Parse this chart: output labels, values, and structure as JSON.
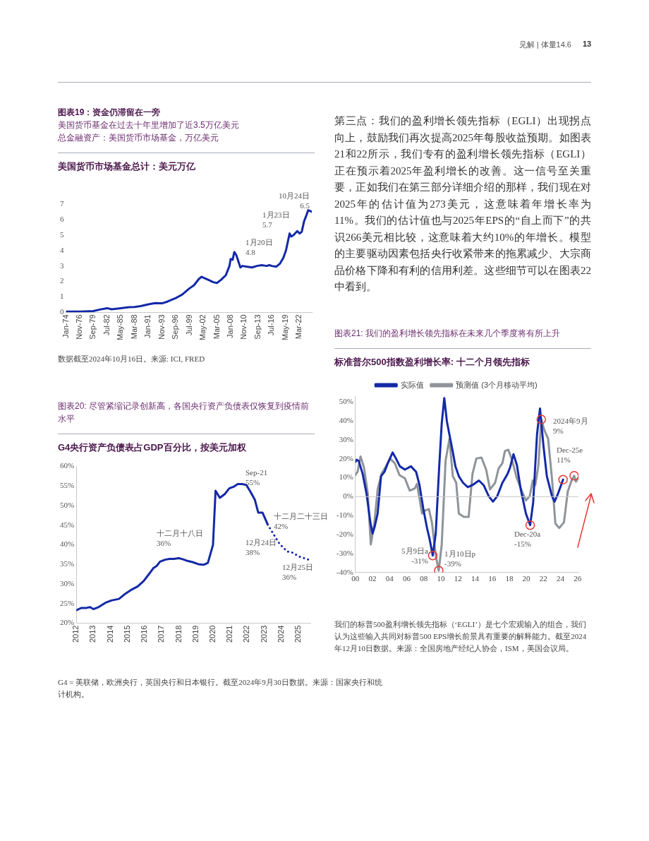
{
  "chart_data": [
    {
      "type": "line",
      "title": "图表19：资金仍滞留在一旁",
      "subtitle": "美国货币基金在过去十年里增加了近3.5万亿美元",
      "ylabel": "总金融资产：美国货币市场基金，万亿美元",
      "color": "#1329a8",
      "x": [
        "1974-01",
        "1977-01",
        "1979-09",
        "1981-01",
        "1982-07",
        "1983-06",
        "1985-05",
        "1987-01",
        "1988-03",
        "1989-06",
        "1991-01",
        "1992-06",
        "1993-11",
        "1995-01",
        "1996-09",
        "1998-01",
        "1999-07",
        "2000-06",
        "2001-06",
        "2002-01",
        "2002-05",
        "2003-06",
        "2004-06",
        "2005-03",
        "2006-01",
        "2007-01",
        "2007-10",
        "2008-01",
        "2008-06",
        "2008-10",
        "2009-03",
        "2009-08",
        "2010-01",
        "2010-06",
        "2011-06",
        "2012-06",
        "2013-06",
        "2014-06",
        "2015-06",
        "2016-01",
        "2016-07",
        "2017-06",
        "2018-03",
        "2018-11",
        "2019-06",
        "2020-03",
        "2020-07",
        "2021-01",
        "2021-10",
        "2022-04",
        "2022-09",
        "2023-03",
        "2023-09",
        "2024-01",
        "2024-06",
        "2024-10"
      ],
      "values": [
        0.05,
        0.05,
        0.08,
        0.18,
        0.27,
        0.2,
        0.27,
        0.33,
        0.35,
        0.4,
        0.52,
        0.6,
        0.58,
        0.7,
        0.92,
        1.15,
        1.55,
        1.75,
        2.15,
        2.3,
        2.25,
        2.1,
        1.95,
        1.9,
        2.1,
        2.4,
        3.0,
        3.45,
        3.4,
        3.9,
        3.7,
        3.3,
        2.9,
        3.0,
        2.95,
        2.9,
        3.0,
        3.05,
        3.0,
        3.05,
        3.0,
        2.95,
        3.15,
        3.5,
        4.0,
        5.1,
        4.9,
        5.0,
        5.25,
        5.1,
        5.2,
        5.9,
        6.3,
        6.6,
        6.55,
        6.5
      ],
      "xlim": [
        "1974-01",
        "2024-10"
      ],
      "xticks": [
        {
          "value": "1974-01",
          "label": "Jan-74"
        },
        {
          "value": "1976-11",
          "label": "Nov-76"
        },
        {
          "value": "1979-09",
          "label": "Sep-79"
        },
        {
          "value": "1982-07",
          "label": "Jul-82"
        },
        {
          "value": "1985-05",
          "label": "May-85"
        },
        {
          "value": "1988-03",
          "label": "Mar-88"
        },
        {
          "value": "1991-01",
          "label": "Jan-91"
        },
        {
          "value": "1993-11",
          "label": "Nov-93"
        },
        {
          "value": "1996-09",
          "label": "Sep-96"
        },
        {
          "value": "1999-07",
          "label": "Jul-99"
        },
        {
          "value": "2002-05",
          "label": "May-02"
        },
        {
          "value": "2005-03",
          "label": "Mar-05"
        },
        {
          "value": "2008-01",
          "label": "Jan-08"
        },
        {
          "value": "2010-11",
          "label": "Nov-10"
        },
        {
          "value": "2013-09",
          "label": "Sep-13"
        },
        {
          "value": "2016-07",
          "label": "Jul-16"
        },
        {
          "value": "2019-05",
          "label": "May-19"
        },
        {
          "value": "2022-03",
          "label": "Mar-22"
        }
      ],
      "ylim": [
        0,
        7
      ],
      "yticks": [
        0,
        1,
        2,
        3,
        4,
        5,
        6,
        7
      ],
      "grid": false,
      "legend": false,
      "annotations": [
        "美国货币市场基金总计：美元万亿",
        "1月20日 4.8",
        "1月23日 5.7",
        "10月24日 6.5",
        "数据截至2024年10月16日。来源: ICI, FRED"
      ]
    },
    {
      "type": "line",
      "title": "图表20: 尽管紧缩记录创新高，各国央行资产负债表仅恢复到疫情前水平",
      "series": [
        {
          "color": "#1329a8",
          "line_style": "solid",
          "x": [
            2012,
            2012.3,
            2012.6,
            2012.8,
            2013,
            2013.3,
            2013.7,
            2014.05,
            2014.5,
            2014.8,
            2015.25,
            2015.6,
            2015.95,
            2016.3,
            2016.5,
            2016.7,
            2016.9,
            2017.2,
            2017.45,
            2017.7,
            2018,
            2018.25,
            2018.5,
            2018.8,
            2019.2,
            2019.45,
            2019.7,
            2020,
            2020.15,
            2020.4,
            2020.7,
            2020.95,
            2021.2,
            2021.45,
            2021.7,
            2021.95,
            2022.2,
            2022.45,
            2022.65,
            2022.9,
            2023.2
          ],
          "values": [
            23.3,
            23.9,
            23.9,
            24.1,
            23.6,
            24.1,
            25.2,
            25.8,
            26.2,
            27.3,
            28.6,
            29.4,
            30.8,
            32.8,
            34,
            34.6,
            35.7,
            36.2,
            36.4,
            36.4,
            36.6,
            36.3,
            35.9,
            35.6,
            35,
            34.9,
            35.4,
            40,
            53.8,
            52,
            53,
            54.4,
            54.8,
            55.5,
            55.5,
            55.3,
            53.5,
            51.5,
            48.2,
            48.2,
            45.2
          ]
        },
        {
          "color": "#1329a8",
          "line_style": "dotted",
          "x": [
            2023.2,
            2023.5,
            2023.9,
            2024.35,
            2024.65,
            2025.05,
            2025.6
          ],
          "values": [
            45.2,
            43,
            40.2,
            38.3,
            38,
            37,
            36.2
          ]
        }
      ],
      "xlim": [
        2012,
        2025.7
      ],
      "xticks": [
        2012,
        2013,
        2014,
        2015,
        2016,
        2017,
        2018,
        2019,
        2020,
        2021,
        2022,
        2023,
        2024,
        2025
      ],
      "ylim": [
        20,
        60
      ],
      "yticks": [
        {
          "value": 20,
          "label": "20%"
        },
        {
          "value": 25,
          "label": "25%"
        },
        {
          "value": 30,
          "label": "30%"
        },
        {
          "value": 35,
          "label": "35%"
        },
        {
          "value": 40,
          "label": "40%"
        },
        {
          "value": 45,
          "label": "45%"
        },
        {
          "value": 50,
          "label": "50%"
        },
        {
          "value": 55,
          "label": "55%"
        },
        {
          "value": 60,
          "label": "60%"
        }
      ],
      "grid": false,
      "legend": false,
      "annotations": [
        "G4央行资产负债表占GDP百分比，按美元加权",
        "Sep-21 55%",
        "十二月十八日 36%",
        "十二月二十三日 42%",
        "12月24日 38%",
        "12月25日 36%",
        "G4 = 美联储，欧洲央行，英国央行和日本银行。截至2024年9月30日数据。来源：国家央行和统计机构。"
      ]
    },
    {
      "type": "line",
      "title": "图表21: 我们的盈利增长领先指标在未来几个季度将有所上升",
      "series": [
        {
          "name": "实际值",
          "color": "#1329a8",
          "x": [
            0,
            0.15,
            0.4,
            0.85,
            1.3,
            1.75,
            2,
            2.25,
            2.6,
            3,
            3.4,
            3.8,
            4.35,
            4.75,
            5.2,
            5.8,
            6.5,
            7.1,
            7.5,
            7.95,
            8.4,
            8.65,
            9.05,
            9.4,
            9.8,
            10.1,
            10.4,
            10.7,
            11,
            11.4,
            11.7,
            12.1,
            12.6,
            13.15,
            13.7,
            14.45,
            15,
            15.6,
            16.1,
            16.6,
            17.2,
            17.8,
            18.1,
            18.5,
            18.9,
            19.35,
            19.95,
            20.45,
            20.8,
            21.25,
            21.6,
            22,
            22.4,
            23,
            23.3,
            23.7,
            24.3
          ],
          "values": [
            18.3,
            19.5,
            18.7,
            12,
            1.5,
            -13.6,
            -19.4,
            -15.9,
            -8.9,
            10.8,
            13.1,
            17.7,
            23.3,
            20.1,
            16,
            14.3,
            16,
            13.1,
            6.1,
            -6.6,
            -17,
            -21.7,
            -31,
            -19.4,
            15.4,
            38.6,
            52,
            39.8,
            32.8,
            23.5,
            16,
            10.8,
            7.3,
            5,
            6.1,
            8.5,
            6.1,
            0.3,
            -2.6,
            0.3,
            7.3,
            12,
            15.4,
            22.4,
            16.6,
            3.8,
            -8.9,
            -15,
            -3.1,
            32.8,
            46.5,
            27,
            10.8,
            0.3,
            -2.6,
            1.5,
            9
          ]
        },
        {
          "name": "预测值 (3个月移动平均)",
          "color": "#8e9499",
          "x": [
            0,
            0.25,
            0.6,
            1,
            1.45,
            1.8,
            2.2,
            2.6,
            3.05,
            3.5,
            4.05,
            4.6,
            5.15,
            5.8,
            6.35,
            6.95,
            7.2,
            7.8,
            8.2,
            8.6,
            8.95,
            9.4,
            9.75,
            10.1,
            10.55,
            11,
            11.4,
            11.8,
            12.1,
            12.7,
            13.25,
            13.7,
            14.15,
            14.75,
            15.3,
            15.75,
            16.35,
            16.75,
            17.2,
            17.5,
            17.9,
            18.35,
            18.9,
            19.5,
            19.95,
            20.4,
            20.75,
            21.05,
            21.4,
            21.75,
            22.1,
            22.55,
            23,
            23.4,
            23.85,
            24.4,
            24.85,
            25.3,
            25.6,
            25.8,
            26.05
          ],
          "values": [
            11.4,
            13.1,
            21.2,
            15.4,
            1.5,
            -25.2,
            -14.7,
            3.8,
            12,
            15.4,
            20.1,
            17.7,
            11.4,
            9.6,
            3.2,
            4.4,
            6.7,
            -8.9,
            -7.2,
            -6.6,
            -13.6,
            -31,
            -39,
            -25.2,
            18.9,
            30.5,
            10.8,
            7.3,
            -8.9,
            -10.7,
            -10.7,
            12,
            20.1,
            20.6,
            14.3,
            3.8,
            7.3,
            14.8,
            17.7,
            24.1,
            24.7,
            18.9,
            9.6,
            2.7,
            -2,
            0.3,
            8.5,
            6.1,
            16,
            40.7,
            35.2,
            30.5,
            9.6,
            -14.2,
            -16.5,
            -13.6,
            2.7,
            8.5,
            11,
            7.9,
            9.6
          ]
        },
        {
          "type": "scatter",
          "marker": "circle",
          "color": "#e53935",
          "x": [
            9.05,
            9.75,
            20.45,
            21.75,
            24.3,
            25.6
          ],
          "values": [
            -31,
            -39,
            -15,
            40.7,
            9,
            11
          ]
        }
      ],
      "xlim": [
        0,
        26.1
      ],
      "xticks": [
        {
          "value": 0,
          "label": "00"
        },
        {
          "value": 2,
          "label": "02"
        },
        {
          "value": 4,
          "label": "04"
        },
        {
          "value": 6,
          "label": "06"
        },
        {
          "value": 8,
          "label": "08"
        },
        10,
        12,
        14,
        16,
        18,
        20,
        22,
        24,
        26
      ],
      "ylim": [
        -40,
        53
      ],
      "yticks": [
        {
          "value": -40,
          "label": "-40%"
        },
        {
          "value": -30,
          "label": "-30%"
        },
        {
          "value": -20,
          "label": "-20%"
        },
        {
          "value": -10,
          "label": "-10%"
        },
        {
          "value": 0,
          "label": "0%"
        },
        {
          "value": 10,
          "label": "10%"
        },
        {
          "value": 20,
          "label": "20%"
        },
        {
          "value": 30,
          "label": "30%"
        },
        {
          "value": 40,
          "label": "40%"
        },
        {
          "value": 50,
          "label": "50%"
        }
      ],
      "grid": false,
      "legend": "top",
      "ref_lines": [
        {
          "axis": "y",
          "value": 0,
          "color": "#c8c8c8"
        }
      ],
      "annotations": [
        "标准普尔500指数盈利增长率: 十二个月领先指标",
        "5月9日a -31%",
        "1月10日p -39%",
        "Dec-20a -15%",
        "2024年9月 9%",
        "Dec-25e 11%",
        "我们的标普500盈利增长领先指标（‘EGLI’）是七个宏观输入的组合，我们认为这些输入共同对标普500 EPS增长前景具有重要的解释能力。截至2024年12月10日数据。来源：全国房地产经纪人协会，ISM，美国会议局。"
      ]
    },
    {
      "type": "other",
      "annotations": [
        "见解 | 体量14.6",
        "13",
        "第三点：我们的盈利增长领先指标（EGLI）出现拐点向上，鼓励我们再次提高2025年每股收益预期。如图表21和22所示，我们专有的盈利增长领先指标（EGLI）正在预示着2025年盈利增长的改善。这一信号至关重要，正如我们在第三部分详细介绍的那样，我们现在对2025年的估计值为273美元，这意味着年增长率为11%。我们的估计值也与2025年EPS的“自上而下”的共识266美元相比较，这意味着大约10%的年增长。模型的主要驱动因素包括央行收紧带来的拖累减少、大宗商品价格下降和有利的信用利差。这些细节可以在图表22中看到。"
      ]
    }
  ]
}
